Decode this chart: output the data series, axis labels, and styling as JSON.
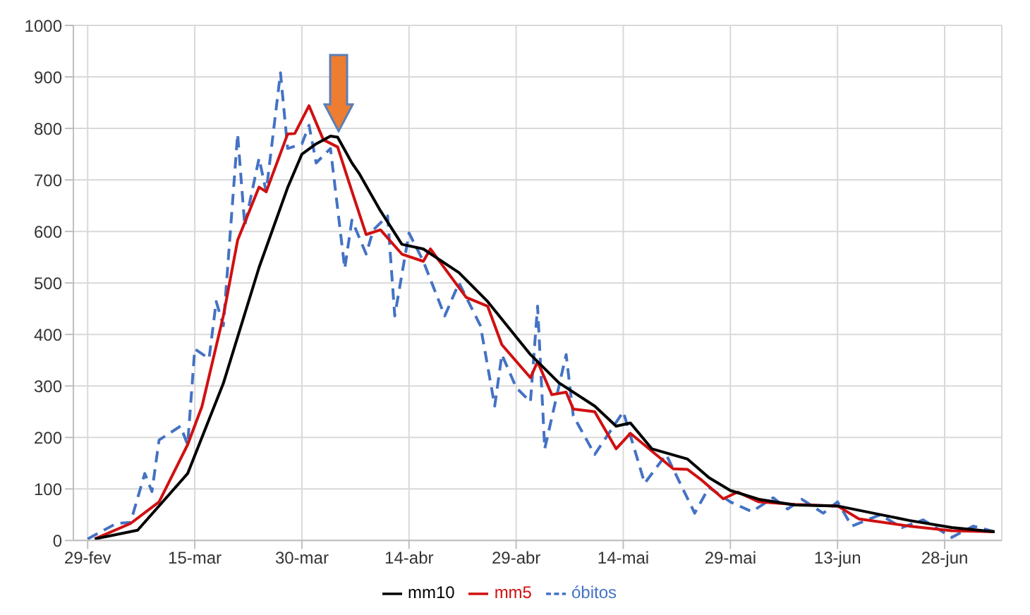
{
  "chart_data": {
    "type": "line",
    "xlim": [
      "--02-27",
      "--07-06"
    ],
    "ylim": [
      0,
      1000
    ],
    "yticks": [
      0,
      100,
      200,
      300,
      400,
      500,
      600,
      700,
      800,
      900,
      1000
    ],
    "xticks": [
      {
        "value": "--02-29",
        "label": "29-fev"
      },
      {
        "value": "--03-15",
        "label": "15-mar"
      },
      {
        "value": "--03-30",
        "label": "30-mar"
      },
      {
        "value": "--04-14",
        "label": "14-abr"
      },
      {
        "value": "--04-29",
        "label": "29-abr"
      },
      {
        "value": "--05-14",
        "label": "14-mai"
      },
      {
        "value": "--05-29",
        "label": "29-mai"
      },
      {
        "value": "--06-13",
        "label": "13-jun"
      },
      {
        "value": "--06-28",
        "label": "28-jun"
      }
    ],
    "grid": true,
    "legend": "bottom",
    "marker": "none",
    "series": [
      {
        "name": "óbitos",
        "color": "#4472c4",
        "line_style": "dashed",
        "x": [
          "--02-29",
          "--03-04",
          "--03-06",
          "--03-08",
          "--03-09",
          "--03-10",
          "--03-13",
          "--03-14",
          "--03-15",
          "--03-17",
          "--03-18",
          "--03-19",
          "--03-21",
          "--03-22",
          "--03-24",
          "--03-25",
          "--03-27",
          "--03-28",
          "--03-30",
          "--03-31",
          "--04-01",
          "--04-03",
          "--04-05",
          "--04-06",
          "--04-08",
          "--04-09",
          "--04-11",
          "--04-12",
          "--04-14",
          "--04-16",
          "--04-19",
          "--04-21",
          "--04-24",
          "--04-26",
          "--04-27",
          "--04-29",
          "--05-01",
          "--05-02",
          "--05-03",
          "--05-06",
          "--05-07",
          "--05-10",
          "--05-14",
          "--05-17",
          "--05-20",
          "--05-24",
          "--05-26",
          "--05-29",
          "--06-01",
          "--06-04",
          "--06-06",
          "--06-08",
          "--06-11",
          "--06-13",
          "--06-15",
          "--06-19",
          "--06-22",
          "--06-25",
          "--06-29",
          "--07-02",
          "--07-05"
        ],
        "values": [
          3,
          33,
          35,
          130,
          95,
          195,
          222,
          186,
          372,
          353,
          464,
          417,
          789,
          611,
          742,
          677,
          908,
          761,
          770,
          806,
          733,
          761,
          528,
          622,
          556,
          603,
          630,
          436,
          597,
          542,
          436,
          500,
          417,
          261,
          361,
          297,
          269,
          455,
          178,
          361,
          242,
          167,
          250,
          111,
          167,
          53,
          103,
          75,
          56,
          83,
          61,
          80,
          53,
          75,
          28,
          50,
          25,
          40,
          6,
          28,
          17
        ]
      },
      {
        "name": "mm5",
        "color": "#d01010",
        "line_style": "solid",
        "x": [
          "--03-01",
          "--03-06",
          "--03-10",
          "--03-14",
          "--03-16",
          "--03-19",
          "--03-21",
          "--03-24",
          "--03-25",
          "--03-28",
          "--03-29",
          "--03-31",
          "--04-02",
          "--04-04",
          "--04-06",
          "--04-08",
          "--04-10",
          "--04-13",
          "--04-16",
          "--04-17",
          "--04-22",
          "--04-25",
          "--04-27",
          "--05-01",
          "--05-02",
          "--05-04",
          "--05-06",
          "--05-07",
          "--05-10",
          "--05-13",
          "--05-15",
          "--05-21",
          "--05-23",
          "--05-25",
          "--05-28",
          "--05-30",
          "--06-02",
          "--06-07",
          "--06-13",
          "--06-16",
          "--06-23",
          "--06-29",
          "--07-05"
        ],
        "values": [
          3,
          33,
          75,
          186,
          260,
          436,
          583,
          686,
          677,
          789,
          790,
          844,
          778,
          764,
          678,
          594,
          603,
          556,
          542,
          566,
          472,
          455,
          380,
          316,
          347,
          283,
          288,
          255,
          250,
          178,
          208,
          139,
          138,
          117,
          81,
          94,
          75,
          70,
          67,
          42,
          28,
          19,
          17
        ]
      },
      {
        "name": "mm10",
        "color": "#000000",
        "line_style": "solid",
        "x": [
          "--03-01",
          "--03-07",
          "--03-14",
          "--03-19",
          "--03-24",
          "--03-28",
          "--03-30",
          "--04-01",
          "--04-03",
          "--04-04",
          "--04-06",
          "--04-07",
          "--04-10",
          "--04-13",
          "--04-16",
          "--04-21",
          "--04-25",
          "--05-01",
          "--05-05",
          "--05-10",
          "--05-13",
          "--05-15",
          "--05-18",
          "--05-23",
          "--05-26",
          "--05-29",
          "--06-02",
          "--06-07",
          "--06-13",
          "--06-18",
          "--06-23",
          "--06-29",
          "--07-05"
        ],
        "values": [
          3,
          20,
          130,
          305,
          530,
          685,
          750,
          770,
          785,
          783,
          733,
          713,
          640,
          575,
          566,
          520,
          464,
          361,
          306,
          261,
          222,
          228,
          178,
          158,
          122,
          97,
          80,
          69,
          67,
          53,
          39,
          25,
          17
        ]
      }
    ]
  }
}
